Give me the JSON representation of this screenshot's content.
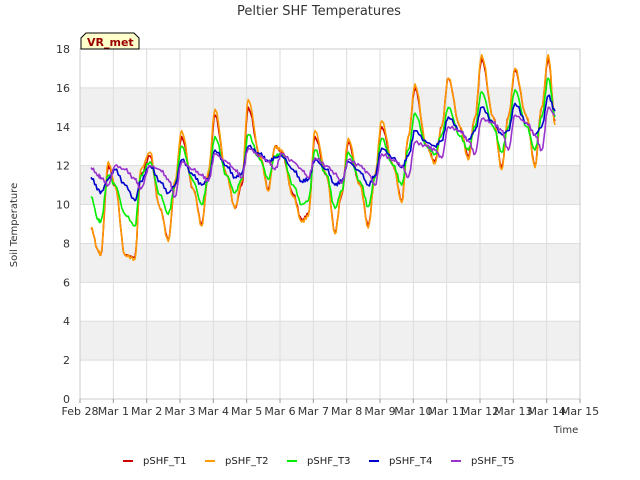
{
  "chart_data": {
    "type": "line",
    "title": "Peltier SHF Temperatures",
    "xlabel": "Time",
    "ylabel": "Soil Temperature",
    "badge": "VR_met",
    "grid": true,
    "legend_position": "bottom",
    "ylim": [
      0,
      18
    ],
    "yticks": [
      0,
      2,
      4,
      6,
      8,
      10,
      12,
      14,
      16,
      18
    ],
    "xlim": [
      0,
      15
    ],
    "xticks": [
      0,
      1,
      2,
      3,
      4,
      5,
      6,
      7,
      8,
      9,
      10,
      11,
      12,
      13,
      14,
      15
    ],
    "xtick_labels": [
      "Feb 28",
      "Mar 1",
      "Mar 2",
      "Mar 3",
      "Mar 4",
      "Mar 5",
      "Mar 6",
      "Mar 7",
      "Mar 8",
      "Mar 9",
      "Mar 10",
      "Mar 11",
      "Mar 12",
      "Mar 13",
      "Mar 14",
      "Mar 15"
    ],
    "band_color": "#f0f0f0",
    "grid_color": "#dddddd",
    "series": [
      {
        "name": "pSHF_T1",
        "color": "#cc0000",
        "x": [
          0.33,
          0.55,
          0.62,
          0.85,
          1.05,
          1.35,
          1.65,
          1.82,
          2.1,
          2.4,
          2.65,
          2.85,
          3.05,
          3.4,
          3.65,
          3.85,
          4.05,
          4.4,
          4.65,
          4.85,
          5.05,
          5.4,
          5.65,
          5.85,
          6.05,
          6.4,
          6.65,
          6.85,
          7.05,
          7.4,
          7.65,
          7.85,
          8.05,
          8.4,
          8.65,
          8.85,
          9.05,
          9.4,
          9.65,
          9.85,
          10.05,
          10.4,
          10.65,
          10.85,
          11.05,
          11.4,
          11.65,
          11.85,
          12.05,
          12.4,
          12.65,
          12.85,
          13.05,
          13.4,
          13.65,
          13.85,
          14.05,
          14.25
        ],
        "y": [
          8.8,
          7.6,
          7.4,
          12.0,
          11.0,
          7.4,
          7.3,
          11.5,
          12.5,
          9.8,
          8.2,
          11.0,
          13.5,
          10.8,
          9.0,
          11.5,
          14.6,
          11.5,
          9.8,
          11.0,
          15.0,
          12.5,
          10.8,
          13.0,
          12.7,
          10.5,
          9.2,
          9.5,
          13.5,
          11.5,
          8.6,
          10.5,
          13.2,
          11.0,
          8.9,
          11.5,
          14.0,
          12.0,
          10.2,
          13.5,
          16.0,
          13.0,
          12.2,
          14.0,
          16.5,
          14.0,
          12.5,
          14.5,
          17.5,
          14.5,
          11.9,
          14.5,
          16.9,
          14.5,
          12.0,
          15.0,
          17.5,
          14.3
        ]
      },
      {
        "name": "pSHF_T2",
        "color": "#ff9900",
        "x": [
          0.33,
          0.55,
          0.62,
          0.85,
          1.05,
          1.35,
          1.65,
          1.82,
          2.1,
          2.4,
          2.65,
          2.85,
          3.05,
          3.4,
          3.65,
          3.85,
          4.05,
          4.4,
          4.65,
          4.85,
          5.05,
          5.4,
          5.65,
          5.85,
          6.05,
          6.4,
          6.65,
          6.85,
          7.05,
          7.4,
          7.65,
          7.85,
          8.05,
          8.4,
          8.65,
          8.85,
          9.05,
          9.4,
          9.65,
          9.85,
          10.05,
          10.4,
          10.65,
          10.85,
          11.05,
          11.4,
          11.65,
          11.85,
          12.05,
          12.4,
          12.65,
          12.85,
          13.05,
          13.4,
          13.65,
          13.85,
          14.05,
          14.25
        ],
        "y": [
          8.8,
          7.6,
          7.4,
          12.2,
          11.0,
          7.4,
          7.2,
          11.8,
          12.7,
          9.8,
          8.1,
          11.2,
          13.8,
          10.8,
          8.9,
          11.7,
          14.9,
          11.5,
          9.8,
          11.2,
          15.4,
          12.5,
          10.7,
          13.0,
          12.8,
          10.4,
          9.1,
          9.4,
          13.8,
          11.5,
          8.5,
          10.6,
          13.4,
          11.0,
          8.8,
          11.5,
          14.3,
          12.0,
          10.1,
          13.5,
          16.2,
          13.0,
          12.1,
          14.0,
          16.5,
          14.0,
          12.3,
          14.5,
          17.7,
          14.5,
          11.8,
          14.5,
          17.0,
          14.5,
          11.9,
          15.0,
          17.7,
          14.1
        ]
      },
      {
        "name": "pSHF_T3",
        "color": "#00ee00",
        "x": [
          0.33,
          0.55,
          0.62,
          0.85,
          1.05,
          1.35,
          1.65,
          1.82,
          2.1,
          2.4,
          2.65,
          2.85,
          3.05,
          3.4,
          3.65,
          3.85,
          4.05,
          4.4,
          4.65,
          4.85,
          5.05,
          5.4,
          5.65,
          5.85,
          6.05,
          6.4,
          6.65,
          6.85,
          7.05,
          7.4,
          7.65,
          7.85,
          8.05,
          8.4,
          8.65,
          8.85,
          9.05,
          9.4,
          9.65,
          9.85,
          10.05,
          10.4,
          10.65,
          10.85,
          11.05,
          11.4,
          11.65,
          11.85,
          12.05,
          12.4,
          12.65,
          12.85,
          13.05,
          13.4,
          13.65,
          13.85,
          14.05,
          14.25
        ],
        "y": [
          10.4,
          9.2,
          9.1,
          11.5,
          11.0,
          9.5,
          8.9,
          11.5,
          12.2,
          10.5,
          9.5,
          11.0,
          13.0,
          11.2,
          10.0,
          11.3,
          13.5,
          11.5,
          10.6,
          11.3,
          13.6,
          12.3,
          11.3,
          12.5,
          12.6,
          11.0,
          10.0,
          10.2,
          12.8,
          11.5,
          9.8,
          10.7,
          12.7,
          11.2,
          9.9,
          11.4,
          13.4,
          12.0,
          11.0,
          12.8,
          14.7,
          13.0,
          12.6,
          13.6,
          15.0,
          13.5,
          12.8,
          14.0,
          15.8,
          14.0,
          12.7,
          14.0,
          15.9,
          14.0,
          12.8,
          14.5,
          16.5,
          14.5
        ]
      },
      {
        "name": "pSHF_T4",
        "color": "#0000cc",
        "x": [
          0.33,
          0.55,
          0.62,
          0.85,
          1.05,
          1.35,
          1.65,
          1.82,
          2.1,
          2.4,
          2.65,
          2.85,
          3.05,
          3.4,
          3.65,
          3.85,
          4.05,
          4.4,
          4.65,
          4.85,
          5.05,
          5.4,
          5.65,
          5.85,
          6.05,
          6.4,
          6.65,
          6.85,
          7.05,
          7.4,
          7.65,
          7.85,
          8.05,
          8.4,
          8.65,
          8.85,
          9.05,
          9.4,
          9.65,
          9.85,
          10.05,
          10.4,
          10.65,
          10.85,
          11.05,
          11.4,
          11.65,
          11.85,
          12.05,
          12.4,
          12.65,
          12.85,
          13.05,
          13.4,
          13.65,
          13.85,
          14.05,
          14.25
        ],
        "y": [
          11.4,
          10.8,
          10.6,
          11.3,
          11.8,
          11.0,
          10.2,
          11.2,
          12.0,
          11.2,
          10.6,
          11.0,
          12.3,
          11.5,
          11.0,
          11.3,
          12.8,
          12.0,
          11.4,
          11.6,
          13.0,
          12.6,
          12.2,
          12.4,
          12.5,
          11.8,
          11.2,
          11.3,
          12.3,
          11.8,
          11.0,
          11.2,
          12.2,
          11.7,
          11.0,
          11.5,
          12.9,
          12.4,
          11.9,
          12.5,
          13.8,
          13.2,
          13.0,
          13.3,
          14.5,
          13.8,
          13.3,
          13.8,
          15.0,
          14.2,
          13.6,
          13.8,
          15.2,
          14.2,
          13.6,
          14.0,
          15.6,
          14.8
        ]
      },
      {
        "name": "pSHF_T5",
        "color": "#9933cc",
        "x": [
          0.33,
          0.55,
          0.62,
          0.85,
          1.05,
          1.35,
          1.65,
          1.82,
          2.1,
          2.4,
          2.65,
          2.85,
          3.05,
          3.4,
          3.65,
          3.85,
          4.05,
          4.4,
          4.65,
          4.85,
          5.05,
          5.4,
          5.65,
          5.85,
          6.05,
          6.4,
          6.65,
          6.85,
          7.05,
          7.4,
          7.65,
          7.85,
          8.05,
          8.4,
          8.65,
          8.85,
          9.05,
          9.4,
          9.65,
          9.85,
          10.05,
          10.4,
          10.65,
          10.85,
          11.05,
          11.4,
          11.65,
          11.85,
          12.05,
          12.4,
          12.65,
          12.85,
          13.05,
          13.4,
          13.65,
          13.85,
          14.05,
          14.25
        ],
        "y": [
          11.9,
          11.5,
          11.4,
          11.0,
          12.0,
          11.8,
          11.3,
          10.8,
          12.0,
          11.8,
          11.3,
          10.4,
          12.2,
          11.8,
          11.5,
          11.2,
          12.6,
          12.2,
          11.8,
          11.4,
          12.9,
          12.5,
          12.2,
          11.8,
          12.6,
          12.2,
          11.8,
          11.4,
          12.4,
          12.0,
          11.6,
          11.1,
          12.3,
          12.0,
          11.6,
          11.0,
          12.6,
          12.3,
          12.0,
          11.4,
          13.2,
          13.0,
          12.8,
          12.4,
          14.0,
          13.8,
          13.3,
          12.6,
          14.4,
          14.2,
          13.8,
          12.8,
          14.6,
          14.2,
          13.6,
          12.8,
          15.0,
          14.6
        ]
      }
    ]
  }
}
